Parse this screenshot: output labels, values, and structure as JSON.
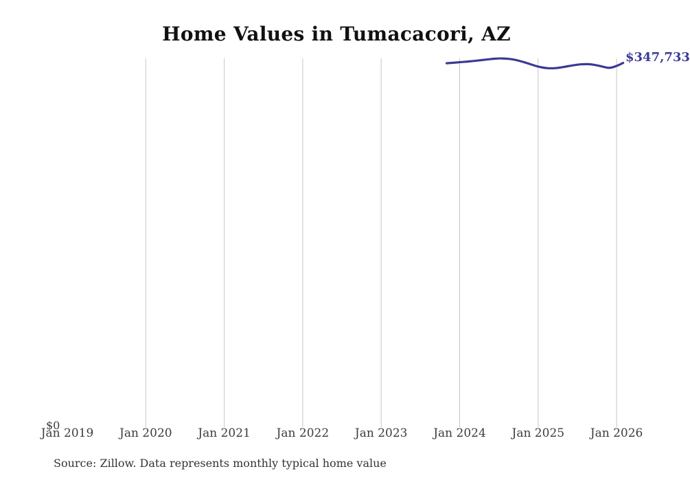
{
  "header": {
    "title": "Home Values in Tumacacori, AZ"
  },
  "annotations": {
    "latest_value_label": "$347,733",
    "y_zero_label": "$0"
  },
  "footer": {
    "source_note": "Source: Zillow. Data represents monthly typical home value"
  },
  "colors": {
    "line": "#3a3a96",
    "value_label": "#3a3a96",
    "gridline": "#c6c6c6",
    "axis_text": "#3c3c3c",
    "title_text": "#111111",
    "source_text": "#333333",
    "background": "#ffffff"
  },
  "chart_data": {
    "type": "line",
    "title": "Home Values in Tumacacori, AZ",
    "xlabel": "",
    "ylabel": "",
    "legend": "none",
    "grid": "vertical-only",
    "ylim": [
      0,
      352100
    ],
    "x_tick_labels": [
      "Jan 2019",
      "Jan 2020",
      "Jan 2021",
      "Jan 2022",
      "Jan 2023",
      "Jan 2024",
      "Jan 2025",
      "Jan 2026"
    ],
    "gridlines": {
      "vertical_at": [
        "Jan 2020",
        "Jan 2021",
        "Jan 2022",
        "Jan 2023",
        "Jan 2024",
        "Jan 2025",
        "Jan 2026"
      ],
      "horizontal": false
    },
    "series": [
      {
        "name": "Monthly typical home value",
        "x": [
          "Nov 2023",
          "Dec 2023",
          "Jan 2024",
          "Feb 2024",
          "Mar 2024",
          "Apr 2024",
          "May 2024",
          "Jun 2024",
          "Jul 2024",
          "Aug 2024",
          "Sep 2024",
          "Oct 2024",
          "Nov 2024",
          "Dec 2024",
          "Jan 2025",
          "Feb 2025",
          "Mar 2025",
          "Apr 2025",
          "May 2025",
          "Jun 2025",
          "Jul 2025",
          "Aug 2025",
          "Sep 2025",
          "Oct 2025",
          "Nov 2025",
          "Dec 2025",
          "Jan 2026",
          "Feb 2026"
        ],
        "values": [
          347400,
          347900,
          348400,
          348900,
          349500,
          350200,
          350900,
          351600,
          352100,
          352000,
          351300,
          350000,
          348200,
          346100,
          344200,
          342900,
          342500,
          342900,
          343900,
          345100,
          346100,
          346600,
          346500,
          345500,
          343900,
          342700,
          344800,
          347733
        ]
      }
    ],
    "latest_value": 347733
  }
}
